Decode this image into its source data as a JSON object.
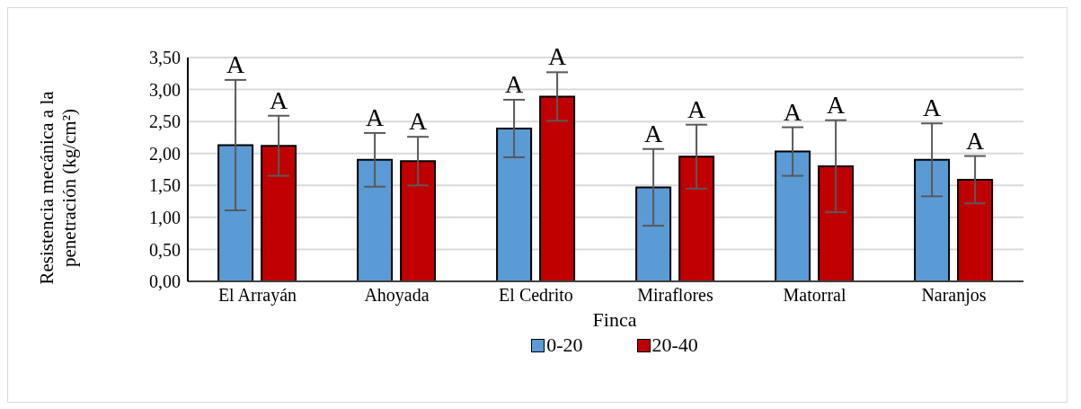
{
  "chart_data": {
    "type": "bar",
    "xlabel": "Finca",
    "ylabel": "Resistencia mecánica a la penetración (kg/cm²)",
    "categories": [
      "El Arrayán",
      "Ahoyada",
      "El Cedrito",
      "Miraflores",
      "Matorral",
      "Naranjos"
    ],
    "series": [
      {
        "name": "0-20",
        "color": "#5b9bd5",
        "values": [
          2.13,
          1.9,
          2.39,
          1.47,
          2.03,
          1.9
        ],
        "errors": [
          1.02,
          0.42,
          0.45,
          0.6,
          0.38,
          0.57
        ],
        "value_labels": [
          "A",
          "A",
          "A",
          "A",
          "A",
          "A"
        ]
      },
      {
        "name": "20-40",
        "color": "#c00000",
        "values": [
          2.12,
          1.88,
          2.89,
          1.95,
          1.8,
          1.59
        ],
        "errors": [
          0.47,
          0.38,
          0.38,
          0.5,
          0.72,
          0.37
        ],
        "value_labels": [
          "A",
          "A",
          "A",
          "A",
          "A",
          "A"
        ]
      }
    ],
    "ylim": [
      0,
      3.5
    ],
    "yticks": [
      {
        "value": 0,
        "label": "0,00"
      },
      {
        "value": 0.5,
        "label": "0,50"
      },
      {
        "value": 1,
        "label": "1,00"
      },
      {
        "value": 1.5,
        "label": "1,50"
      },
      {
        "value": 2,
        "label": "2,00"
      },
      {
        "value": 2.5,
        "label": "2,50"
      },
      {
        "value": 3,
        "label": "3,00"
      },
      {
        "value": 3.5,
        "label": "3,50"
      }
    ],
    "grid": "y",
    "legend": "bottom"
  }
}
